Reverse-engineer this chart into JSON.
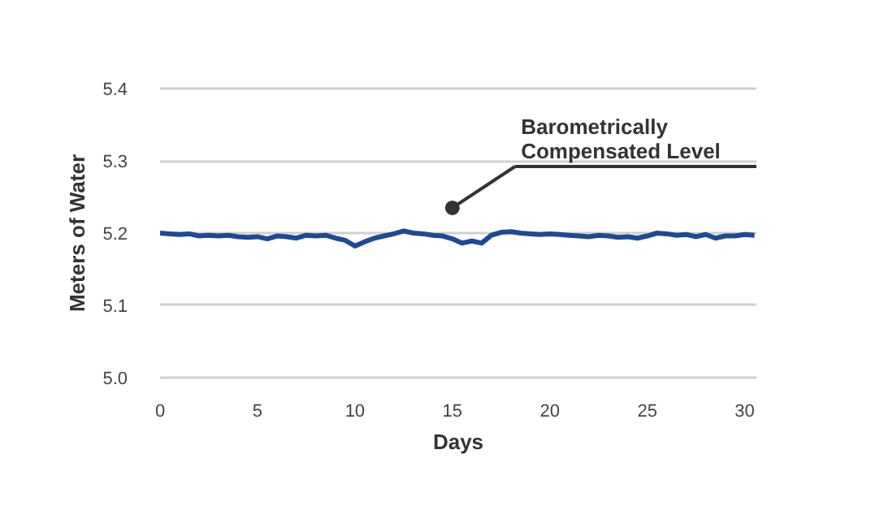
{
  "chart_data": {
    "type": "line",
    "xlabel": "Days",
    "ylabel": "Meters of Water",
    "x": [
      0,
      0.5,
      1,
      1.5,
      2,
      2.5,
      3,
      3.5,
      4,
      4.5,
      5,
      5.5,
      6,
      6.5,
      7,
      7.5,
      8,
      8.5,
      9,
      9.5,
      10,
      10.5,
      11,
      11.5,
      12,
      12.5,
      13,
      13.5,
      14,
      14.5,
      15,
      15.5,
      16,
      16.5,
      17,
      17.5,
      18,
      18.5,
      19,
      19.5,
      20,
      20.5,
      21,
      21.5,
      22,
      22.5,
      23,
      23.5,
      24,
      24.5,
      25,
      25.5,
      26,
      26.5,
      27,
      27.5,
      28,
      28.5,
      29,
      29.5,
      30,
      30.5
    ],
    "series": [
      {
        "color": "#1b4a97",
        "values": [
          5.2,
          5.199,
          5.198,
          5.199,
          5.196,
          5.197,
          5.196,
          5.197,
          5.195,
          5.194,
          5.195,
          5.192,
          5.196,
          5.195,
          5.193,
          5.197,
          5.196,
          5.197,
          5.193,
          5.19,
          5.182,
          5.188,
          5.193,
          5.196,
          5.199,
          5.203,
          5.2,
          5.199,
          5.197,
          5.196,
          5.192,
          5.186,
          5.189,
          5.186,
          5.197,
          5.201,
          5.202,
          5.2,
          5.199,
          5.198,
          5.199,
          5.198,
          5.197,
          5.196,
          5.195,
          5.197,
          5.196,
          5.194,
          5.195,
          5.193,
          5.196,
          5.2,
          5.199,
          5.197,
          5.198,
          5.195,
          5.198,
          5.193,
          5.196,
          5.196,
          5.198,
          5.197
        ]
      }
    ],
    "xlim": [
      0,
      30.6
    ],
    "ylim": [
      4.995,
      5.405
    ],
    "xticks": [
      0,
      5,
      10,
      15,
      20,
      25,
      30
    ],
    "yticks": [
      {
        "value": 5.0,
        "label": "5.0"
      },
      5.1,
      5.2,
      5.3,
      5.4
    ],
    "grid": "y",
    "line_style": "solid",
    "marker": "none",
    "annotations": [
      {
        "text": "Barometrically\nCompensated Level",
        "x": 15,
        "y": 5.235
      }
    ]
  }
}
